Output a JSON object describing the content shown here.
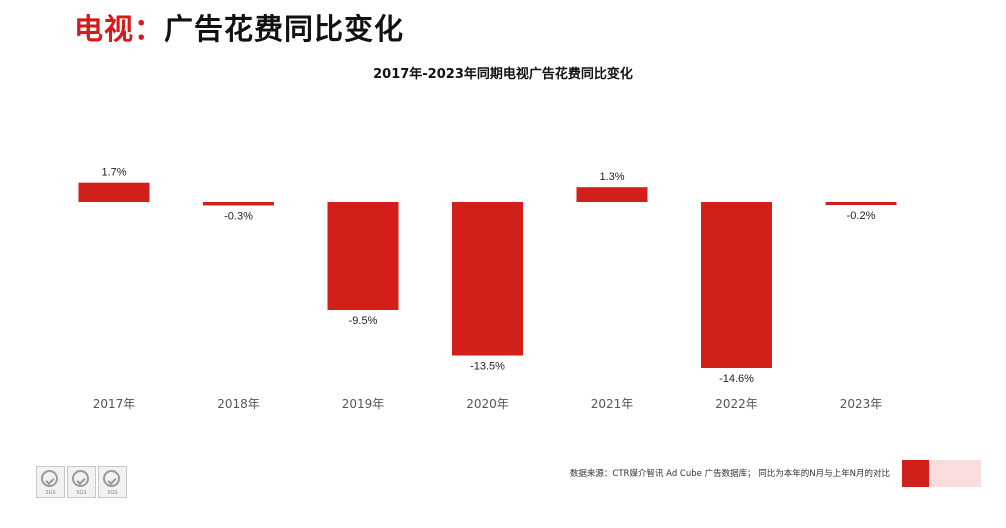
{
  "page": {
    "title_accent": "电视：",
    "title_rest": "广告花费同比变化"
  },
  "footer": {
    "source": "数据来源：CTR媒介智讯 Ad Cube 广告数据库； 同比为本年的N月与上年N月的对比"
  },
  "logos": [
    {
      "icon": "certification-check-icon",
      "text": "SGS"
    },
    {
      "icon": "certification-check-icon",
      "text": "SGS"
    },
    {
      "icon": "certification-check-icon",
      "text": "SGS"
    }
  ],
  "colors": {
    "accent": "#d7191c",
    "bar": "#d21f19",
    "legend_light": "#f9dcdc"
  },
  "chart_data": {
    "type": "bar",
    "title": "2017年-2023年同期电视广告花费同比变化",
    "categories": [
      "2017年",
      "2018年",
      "2019年",
      "2020年",
      "2021年",
      "2022年",
      "2023年"
    ],
    "values": [
      1.7,
      -0.3,
      -9.5,
      -13.5,
      1.3,
      -14.6,
      -0.2
    ],
    "data_labels": [
      "1.7%",
      "-0.3%",
      "-9.5%",
      "-13.5%",
      "1.3%",
      "-14.6%",
      "-0.2%"
    ],
    "unit": "%",
    "xlabel": "",
    "ylabel": "",
    "ylim": [
      -14.6,
      1.7
    ],
    "grid": false,
    "legend": "none"
  }
}
